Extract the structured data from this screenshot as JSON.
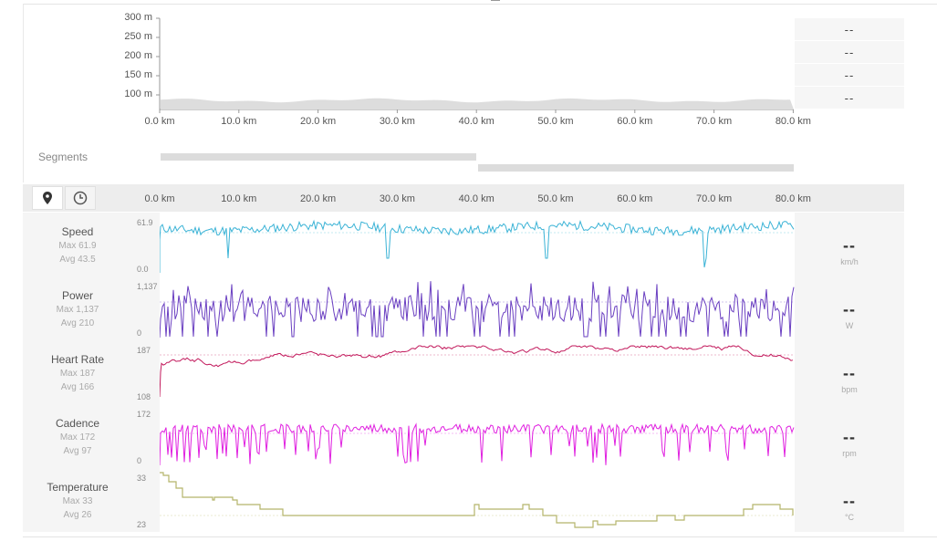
{
  "elevation": {
    "y_ticks": [
      "300 m",
      "250 m",
      "200 m",
      "150 m",
      "100 m"
    ],
    "x_ticks": [
      "0.0 km",
      "10.0 km",
      "20.0 km",
      "30.0 km",
      "40.0 km",
      "50.0 km",
      "60.0 km",
      "70.0 km",
      "80.0 km"
    ],
    "values": [
      "--",
      "--",
      "--",
      "--"
    ],
    "fill_color": "#dddddd"
  },
  "segments": {
    "label": "Segments",
    "bar_color": "#dcdcdc"
  },
  "toolbar": {
    "distance_icon": "map-pin-icon",
    "time_icon": "clock-icon",
    "x_ticks": [
      "0.0 km",
      "10.0 km",
      "20.0 km",
      "30.0 km",
      "40.0 km",
      "50.0 km",
      "60.0 km",
      "70.0 km",
      "80.0 km"
    ]
  },
  "metrics": [
    {
      "key": "speed",
      "name": "Speed",
      "max": "Max 61.9",
      "avg": "Avg 43.5",
      "axis_top": "61.9",
      "axis_bottom": "0.0",
      "value": "--",
      "unit": "km/h",
      "color": "#3bb3d6"
    },
    {
      "key": "power",
      "name": "Power",
      "max": "Max 1,137",
      "avg": "Avg 210",
      "axis_top": "1,137",
      "axis_bottom": "0",
      "value": "--",
      "unit": "W",
      "color": "#6a3fc1"
    },
    {
      "key": "heart-rate",
      "name": "Heart Rate",
      "max": "Max 187",
      "avg": "Avg 166",
      "axis_top": "187",
      "axis_bottom": "108",
      "value": "--",
      "unit": "bpm",
      "color": "#c2185b"
    },
    {
      "key": "cadence",
      "name": "Cadence",
      "max": "Max 172",
      "avg": "Avg 97",
      "axis_top": "172",
      "axis_bottom": "0",
      "value": "--",
      "unit": "rpm",
      "color": "#e020e0"
    },
    {
      "key": "temperature",
      "name": "Temperature",
      "max": "Max 33",
      "avg": "Avg 26",
      "axis_top": "33",
      "axis_bottom": "23",
      "value": "--",
      "unit": "°C",
      "color": "#b5b56a"
    }
  ]
}
